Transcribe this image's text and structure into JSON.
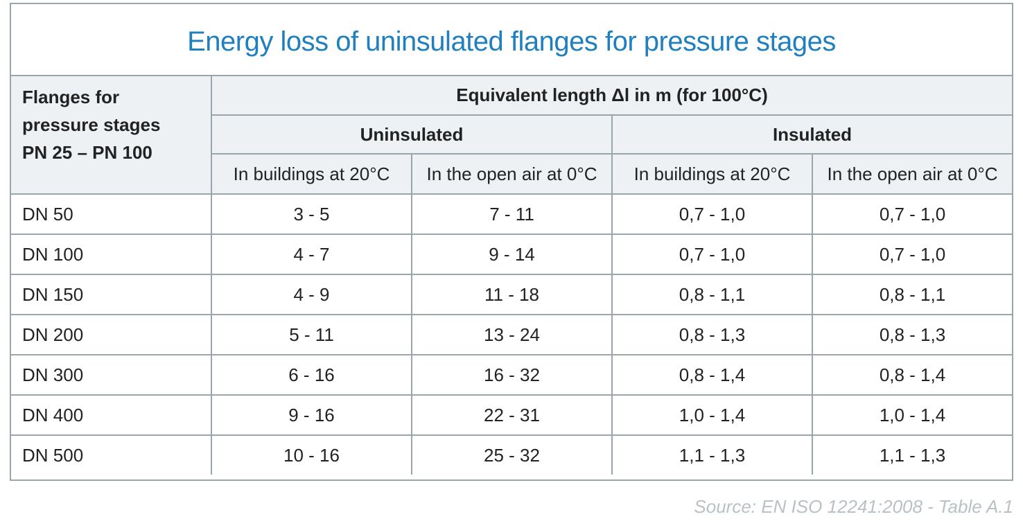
{
  "title": "Energy loss of uninsulated flanges for pressure stages",
  "header": {
    "corner_lines": [
      "Flanges for",
      "pressure stages",
      "PN 25 – PN 100"
    ],
    "equivalent_length": "Equivalent length Δl in m (for 100°C)",
    "groups": [
      "Uninsulated",
      "Insulated"
    ],
    "subcolumns": [
      "In buildings at 20°C",
      "In the open air at 0°C",
      "In buildings at 20°C",
      "In the open air at 0°C"
    ]
  },
  "rows": [
    {
      "dn": "DN 50",
      "values": [
        "3 - 5",
        "7 - 11",
        "0,7 - 1,0",
        "0,7 - 1,0"
      ]
    },
    {
      "dn": "DN 100",
      "values": [
        "4 - 7",
        "9 - 14",
        "0,7 - 1,0",
        "0,7 - 1,0"
      ]
    },
    {
      "dn": "DN 150",
      "values": [
        "4 - 9",
        "11 - 18",
        "0,8 - 1,1",
        "0,8 - 1,1"
      ]
    },
    {
      "dn": "DN 200",
      "values": [
        "5 - 11",
        "13 - 24",
        "0,8 - 1,3",
        "0,8 - 1,3"
      ]
    },
    {
      "dn": "DN 300",
      "values": [
        "6 - 16",
        "16 - 32",
        "0,8 - 1,4",
        "0,8 - 1,4"
      ]
    },
    {
      "dn": "DN 400",
      "values": [
        "9 - 16",
        "22 - 31",
        "1,0 - 1,4",
        "1,0 - 1,4"
      ]
    },
    {
      "dn": "DN 500",
      "values": [
        "10 - 16",
        "25 - 32",
        "1,1 - 1,3",
        "1,1 - 1,3"
      ]
    }
  ],
  "source": "Source: EN ISO 12241:2008 - Table A.1",
  "colors": {
    "title": "#1f7fbf",
    "border": "#9aa4ab",
    "header_bg": "#eef1f3",
    "source": "#b9c1c6"
  }
}
